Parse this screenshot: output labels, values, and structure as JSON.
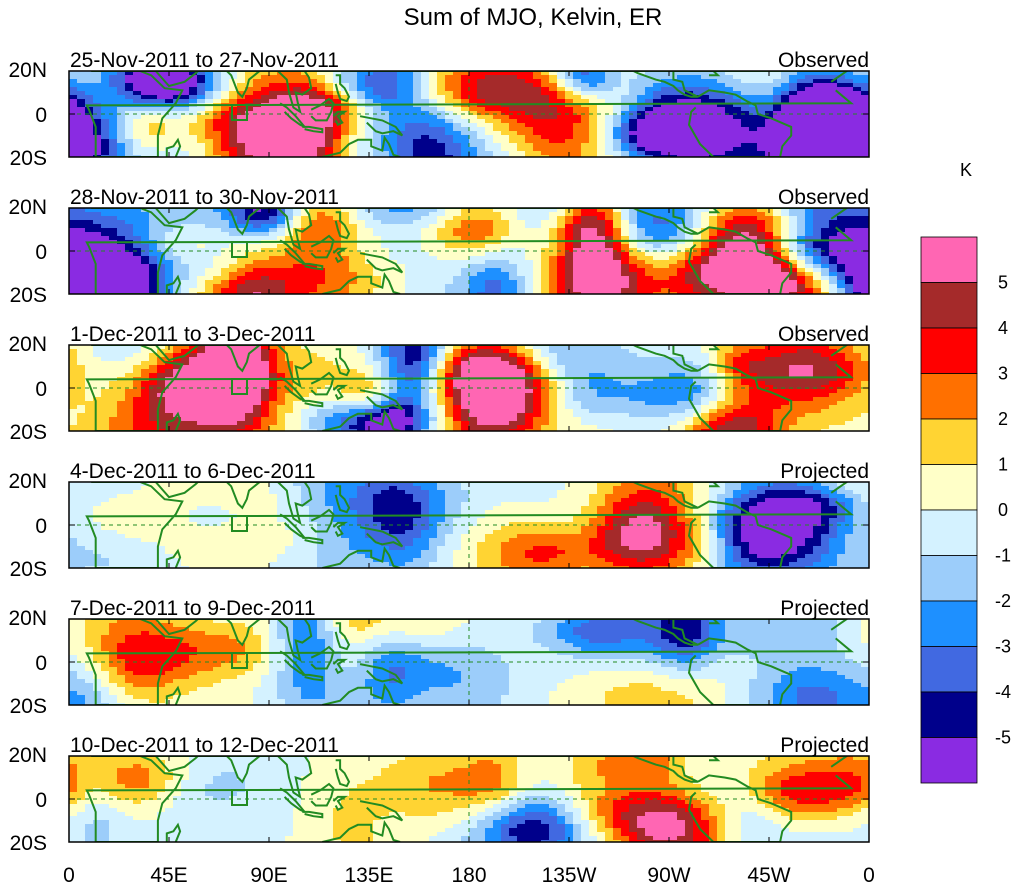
{
  "chart_data": {
    "type": "heatmap",
    "title": "Sum of MJO, Kelvin, ER",
    "units": "K",
    "x_ticks": [
      "0",
      "45E",
      "90E",
      "135E",
      "180",
      "135W",
      "90W",
      "45W",
      "0"
    ],
    "y_ticks": [
      "20N",
      "0",
      "20S"
    ],
    "panels": [
      {
        "period": "25-Nov-2011 to 27-Nov-2011",
        "status": "Observed"
      },
      {
        "period": "28-Nov-2011 to 30-Nov-2011",
        "status": "Observed"
      },
      {
        "period": "1-Dec-2011 to 3-Dec-2011",
        "status": "Observed"
      },
      {
        "period": "4-Dec-2011 to 6-Dec-2011",
        "status": "Projected"
      },
      {
        "period": "7-Dec-2011 to 9-Dec-2011",
        "status": "Projected"
      },
      {
        "period": "10-Dec-2011 to 12-Dec-2011",
        "status": "Projected"
      }
    ],
    "colorbar": {
      "levels": [
        "5",
        "4",
        "3",
        "2",
        "1",
        "0",
        "-1",
        "-2",
        "-3",
        "-4",
        "-5"
      ],
      "colors": [
        "#ff66b3",
        "#a52a2a",
        "#ff0000",
        "#ff7000",
        "#ffd433",
        "#ffffc8",
        "#d4f2ff",
        "#9ccdfa",
        "#1e90ff",
        "#4169e1",
        "#00008b",
        "#8a2be2"
      ]
    },
    "coastline_color": "#228b22"
  }
}
